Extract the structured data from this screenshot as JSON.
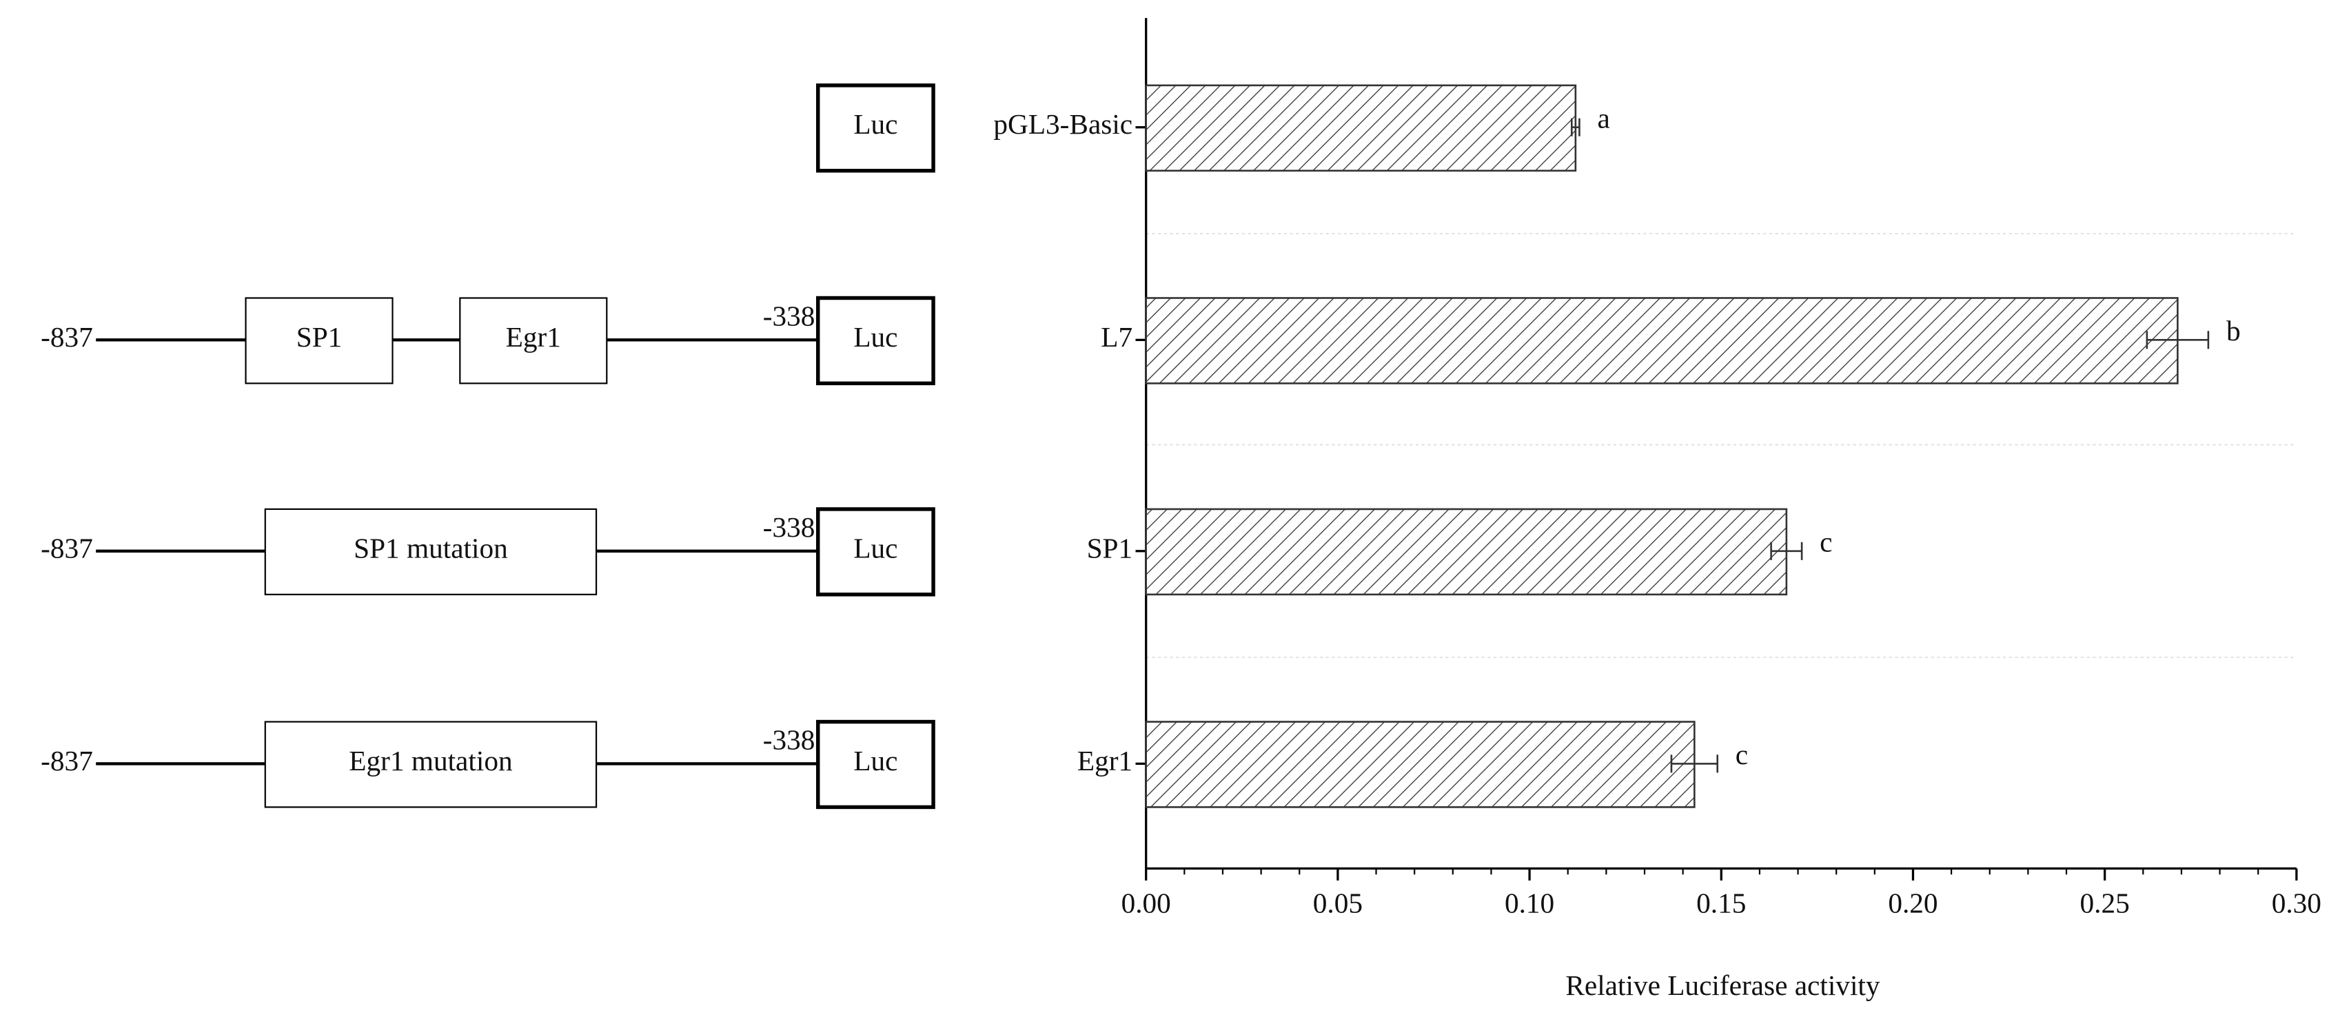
{
  "diagram": {
    "rows": [
      {
        "reporter": "Luc"
      },
      {
        "start": "-837",
        "elements": [
          "SP1",
          "Egr1"
        ],
        "end": "-338",
        "reporter": "Luc"
      },
      {
        "start": "-837",
        "elements": [
          "SP1 mutation"
        ],
        "end": "-338",
        "reporter": "Luc"
      },
      {
        "start": "-837",
        "elements": [
          "Egr1 mutation"
        ],
        "end": "-338",
        "reporter": "Luc"
      }
    ]
  },
  "chart_data": {
    "type": "bar",
    "orientation": "horizontal",
    "categories": [
      "pGL3-Basic",
      "L7",
      "SP1",
      "Egr1"
    ],
    "values": [
      0.112,
      0.269,
      0.167,
      0.143
    ],
    "errors": [
      0.001,
      0.008,
      0.004,
      0.006
    ],
    "annotations": [
      "a",
      "b",
      "c",
      "c"
    ],
    "color": "#333333",
    "hatch": true,
    "xlabel": "Relative Luciferase activity",
    "xlim": [
      0,
      0.3
    ],
    "xticks": [
      {
        "value": 0,
        "label": "0.00"
      },
      0.05,
      {
        "value": 0.1,
        "label": "0.10"
      },
      0.15,
      {
        "value": 0.2,
        "label": "0.20"
      },
      0.25,
      {
        "value": 0.3,
        "label": "0.30"
      }
    ],
    "x_minor_ticks": [
      0.01,
      0.02,
      0.03,
      0.04,
      0.06,
      0.07,
      0.08,
      0.09,
      0.11,
      0.12,
      0.13,
      0.14,
      0.16,
      0.17,
      0.18,
      0.19,
      0.21,
      0.22,
      0.23,
      0.24,
      0.26,
      0.27,
      0.28,
      0.29
    ]
  }
}
